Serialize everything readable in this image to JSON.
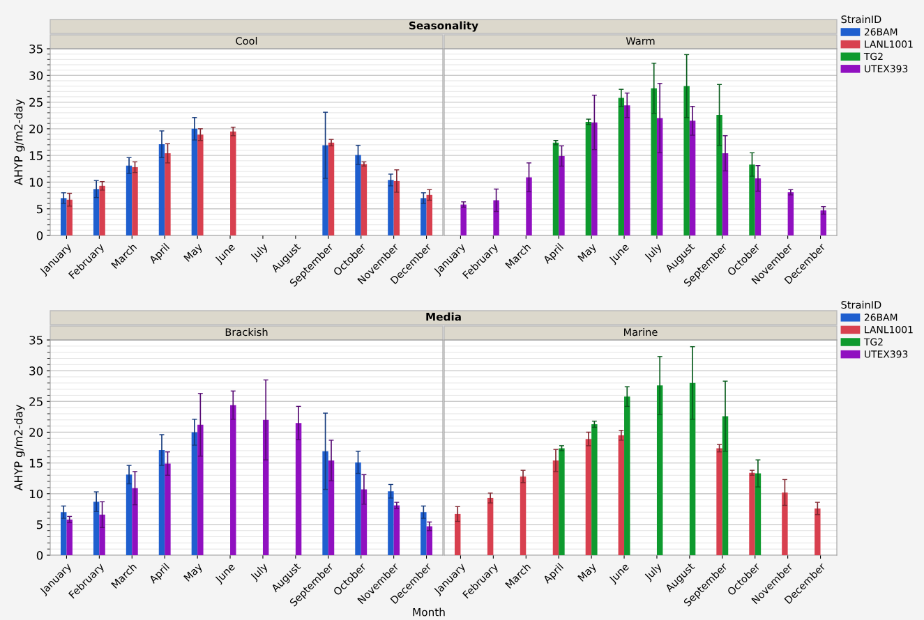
{
  "chart_data": [
    {
      "type": "bar",
      "title": "Seasonality",
      "subtitle": "Cool",
      "ylabel": "AHYP g/m2-day",
      "categories": [
        "January",
        "February",
        "March",
        "April",
        "May",
        "June",
        "July",
        "August",
        "September",
        "October",
        "November",
        "December"
      ],
      "series": [
        {
          "color": "#1f5fcf",
          "values": [
            7.0,
            8.7,
            13.1,
            17.1,
            20.0,
            null,
            null,
            null,
            16.9,
            15.1,
            10.4,
            7.0
          ],
          "errors": [
            1.0,
            1.6,
            1.5,
            2.5,
            2.1,
            null,
            null,
            null,
            6.2,
            1.8,
            1.1,
            1.0
          ]
        },
        {
          "color": "#d8404f",
          "values": [
            6.7,
            9.3,
            12.8,
            15.4,
            18.9,
            19.5,
            null,
            null,
            17.4,
            13.4,
            10.2,
            7.6
          ],
          "errors": [
            1.2,
            0.8,
            1.0,
            1.8,
            1.1,
            0.8,
            null,
            null,
            0.6,
            0.4,
            2.1,
            1.0
          ]
        }
      ],
      "ylim": [
        0,
        35
      ],
      "yticks": [
        0,
        5,
        10,
        15,
        20,
        25,
        30,
        35
      ],
      "grid": "y"
    },
    {
      "type": "bar",
      "subtitle": "Warm",
      "legend_title": "StrainID",
      "categories": [
        "January",
        "February",
        "March",
        "April",
        "May",
        "June",
        "July",
        "August",
        "September",
        "October",
        "November",
        "December"
      ],
      "series": [
        {
          "name": "26BAM",
          "color": "#1f5fcf",
          "values": [
            null,
            null,
            null,
            null,
            null,
            null,
            null,
            null,
            null,
            null,
            null,
            null
          ]
        },
        {
          "name": "LANL1001",
          "color": "#d8404f",
          "values": [
            null,
            null,
            null,
            null,
            null,
            null,
            null,
            null,
            null,
            null,
            null,
            null
          ]
        },
        {
          "name": "TG2",
          "color": "#0e9a2e",
          "values": [
            null,
            null,
            null,
            17.4,
            21.3,
            25.8,
            27.6,
            28.0,
            22.6,
            13.3,
            null,
            null
          ],
          "errors": [
            null,
            null,
            null,
            0.4,
            0.5,
            1.6,
            4.7,
            5.9,
            5.7,
            2.2,
            null,
            null
          ]
        },
        {
          "name": "UTEX393",
          "color": "#9010c0",
          "values": [
            5.8,
            6.6,
            10.9,
            14.9,
            21.2,
            24.4,
            22.0,
            21.5,
            15.4,
            10.7,
            8.1,
            4.7
          ],
          "errors": [
            0.5,
            2.1,
            2.7,
            1.9,
            5.1,
            2.3,
            6.5,
            2.7,
            3.3,
            2.4,
            0.5,
            0.7
          ]
        }
      ],
      "ylim": [
        0,
        35
      ],
      "yticks": [
        0,
        5,
        10,
        15,
        20,
        25,
        30,
        35
      ],
      "grid": "y",
      "legend": "right",
      "tick_labels": "x"
    },
    {
      "type": "bar",
      "title": "Media",
      "subtitle": "Brackish",
      "ylabel": "AHYP g/m2-day",
      "xlabel": "Month",
      "categories": [
        "January",
        "February",
        "March",
        "April",
        "May",
        "June",
        "July",
        "August",
        "September",
        "October",
        "November",
        "December"
      ],
      "series": [
        {
          "color": "#1f5fcf",
          "values": [
            7.0,
            8.7,
            13.1,
            17.1,
            20.0,
            null,
            null,
            null,
            16.9,
            15.1,
            10.4,
            7.0
          ],
          "errors": [
            1.0,
            1.6,
            1.5,
            2.5,
            2.1,
            null,
            null,
            null,
            6.2,
            1.8,
            1.1,
            1.0
          ]
        },
        {
          "color": "#9010c0",
          "values": [
            5.8,
            6.6,
            10.9,
            14.9,
            21.2,
            24.4,
            22.0,
            21.5,
            15.4,
            10.7,
            8.1,
            4.7
          ],
          "errors": [
            0.5,
            2.1,
            2.7,
            1.9,
            5.1,
            2.3,
            6.5,
            2.7,
            3.3,
            2.4,
            0.5,
            0.7
          ]
        }
      ],
      "ylim": [
        0,
        35
      ],
      "yticks": [
        0,
        5,
        10,
        15,
        20,
        25,
        30,
        35
      ],
      "grid": "y"
    },
    {
      "type": "bar",
      "subtitle": "Marine",
      "legend_title": "StrainID",
      "categories": [
        "January",
        "February",
        "March",
        "April",
        "May",
        "June",
        "July",
        "August",
        "September",
        "October",
        "November",
        "December"
      ],
      "series": [
        {
          "name": "26BAM",
          "color": "#1f5fcf",
          "values": [
            null,
            null,
            null,
            null,
            null,
            null,
            null,
            null,
            null,
            null,
            null,
            null
          ]
        },
        {
          "name": "LANL1001",
          "color": "#d8404f",
          "values": [
            6.7,
            9.3,
            12.8,
            15.4,
            18.9,
            19.5,
            null,
            null,
            17.4,
            13.4,
            10.2,
            7.6
          ],
          "errors": [
            1.2,
            0.8,
            1.0,
            1.8,
            1.1,
            0.8,
            null,
            null,
            0.6,
            0.4,
            2.1,
            1.0
          ]
        },
        {
          "name": "TG2",
          "color": "#0e9a2e",
          "values": [
            null,
            null,
            null,
            17.4,
            21.3,
            25.8,
            27.6,
            28.0,
            22.6,
            13.3,
            null,
            null
          ],
          "errors": [
            null,
            null,
            null,
            0.4,
            0.5,
            1.6,
            4.7,
            5.9,
            5.7,
            2.2,
            null,
            null
          ]
        },
        {
          "name": "UTEX393",
          "color": "#9010c0",
          "values": [
            null,
            null,
            null,
            null,
            null,
            null,
            null,
            null,
            null,
            null,
            null,
            null
          ]
        }
      ],
      "ylim": [
        0,
        35
      ],
      "yticks": [
        0,
        5,
        10,
        15,
        20,
        25,
        30,
        35
      ],
      "grid": "y",
      "legend": "right",
      "tick_labels": "x"
    }
  ]
}
